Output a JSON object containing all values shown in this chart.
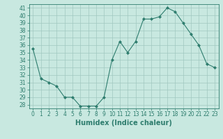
{
  "x": [
    0,
    1,
    2,
    3,
    4,
    5,
    6,
    7,
    8,
    9,
    10,
    11,
    12,
    13,
    14,
    15,
    16,
    17,
    18,
    19,
    20,
    21,
    22,
    23
  ],
  "y": [
    35.5,
    31.5,
    31.0,
    30.5,
    29.0,
    29.0,
    27.8,
    27.8,
    27.8,
    29.0,
    34.0,
    36.5,
    35.0,
    36.5,
    39.5,
    39.5,
    39.8,
    41.0,
    40.5,
    39.0,
    37.5,
    36.0,
    33.5,
    33.0
  ],
  "line_color": "#2e7d6e",
  "marker": "D",
  "marker_size": 2,
  "background_color": "#c8e8e0",
  "grid_color": "#a0c8c0",
  "xlabel": "Humidex (Indice chaleur)",
  "ylabel": "",
  "ylim": [
    27.5,
    41.5
  ],
  "xlim": [
    -0.5,
    23.5
  ],
  "yticks": [
    28,
    29,
    30,
    31,
    32,
    33,
    34,
    35,
    36,
    37,
    38,
    39,
    40,
    41
  ],
  "xticks": [
    0,
    1,
    2,
    3,
    4,
    5,
    6,
    7,
    8,
    9,
    10,
    11,
    12,
    13,
    14,
    15,
    16,
    17,
    18,
    19,
    20,
    21,
    22,
    23
  ],
  "label_fontsize": 7,
  "tick_fontsize": 5.5
}
